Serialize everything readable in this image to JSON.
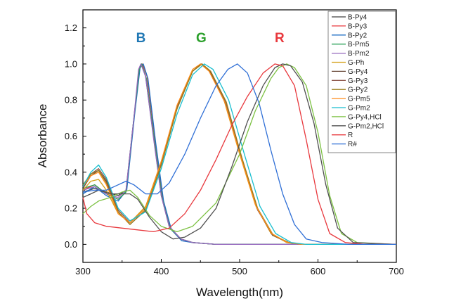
{
  "chart_data": {
    "type": "line",
    "xlabel": "Wavelength(nm)",
    "ylabel": "Absorbance",
    "xlim": [
      300,
      700
    ],
    "ylim": [
      -0.1,
      1.3
    ],
    "xticks": [
      "300",
      "400",
      "500",
      "600",
      "700"
    ],
    "yticks": [
      "0.0",
      "0.2",
      "0.4",
      "0.6",
      "0.8",
      "1.0",
      "1.2"
    ],
    "legend_position": "top-right",
    "annotations": [
      {
        "text": "B",
        "color": "#1f77b4",
        "x": 374,
        "y": 1.12
      },
      {
        "text": "G",
        "color": "#2ca02c",
        "x": 451,
        "y": 1.12
      },
      {
        "text": "R",
        "color": "#e8383d",
        "x": 551,
        "y": 1.12
      }
    ],
    "series": [
      {
        "name": "B-Py4",
        "color": "#404040",
        "points": [
          [
            300,
            0.29
          ],
          [
            315,
            0.31
          ],
          [
            330,
            0.29
          ],
          [
            345,
            0.27
          ],
          [
            355,
            0.3
          ],
          [
            365,
            0.7
          ],
          [
            372,
            0.97
          ],
          [
            375,
            1.0
          ],
          [
            380,
            0.93
          ],
          [
            390,
            0.6
          ],
          [
            400,
            0.27
          ],
          [
            410,
            0.1
          ],
          [
            425,
            0.03
          ],
          [
            440,
            0.01
          ],
          [
            470,
            0.0
          ],
          [
            700,
            0.0
          ]
        ]
      },
      {
        "name": "B-Py3",
        "color": "#e8383d",
        "points": [
          [
            300,
            0.3
          ],
          [
            315,
            0.33
          ],
          [
            330,
            0.28
          ],
          [
            345,
            0.25
          ],
          [
            355,
            0.29
          ],
          [
            365,
            0.69
          ],
          [
            372,
            0.97
          ],
          [
            376,
            1.0
          ],
          [
            382,
            0.93
          ],
          [
            392,
            0.58
          ],
          [
            402,
            0.25
          ],
          [
            412,
            0.09
          ],
          [
            425,
            0.03
          ],
          [
            440,
            0.01
          ],
          [
            470,
            0.0
          ],
          [
            700,
            0.0
          ]
        ]
      },
      {
        "name": "B-Py2",
        "color": "#1f6fc4",
        "points": [
          [
            300,
            0.28
          ],
          [
            315,
            0.32
          ],
          [
            330,
            0.27
          ],
          [
            345,
            0.24
          ],
          [
            356,
            0.3
          ],
          [
            366,
            0.72
          ],
          [
            373,
            0.98
          ],
          [
            377,
            1.0
          ],
          [
            383,
            0.92
          ],
          [
            393,
            0.56
          ],
          [
            403,
            0.24
          ],
          [
            413,
            0.08
          ],
          [
            426,
            0.02
          ],
          [
            440,
            0.01
          ],
          [
            470,
            0.0
          ],
          [
            700,
            0.0
          ]
        ]
      },
      {
        "name": "B-Pm5",
        "color": "#2ca05a",
        "points": [
          [
            300,
            0.31
          ],
          [
            315,
            0.33
          ],
          [
            330,
            0.28
          ],
          [
            345,
            0.25
          ],
          [
            355,
            0.29
          ],
          [
            365,
            0.7
          ],
          [
            372,
            0.97
          ],
          [
            375,
            1.0
          ],
          [
            381,
            0.92
          ],
          [
            391,
            0.58
          ],
          [
            401,
            0.26
          ],
          [
            411,
            0.09
          ],
          [
            425,
            0.03
          ],
          [
            440,
            0.01
          ],
          [
            470,
            0.0
          ],
          [
            700,
            0.0
          ]
        ]
      },
      {
        "name": "B-Pm2",
        "color": "#9467bd",
        "points": [
          [
            300,
            0.3
          ],
          [
            315,
            0.32
          ],
          [
            330,
            0.28
          ],
          [
            345,
            0.26
          ],
          [
            355,
            0.3
          ],
          [
            365,
            0.7
          ],
          [
            371,
            0.97
          ],
          [
            374,
            1.0
          ],
          [
            380,
            0.93
          ],
          [
            390,
            0.59
          ],
          [
            400,
            0.27
          ],
          [
            410,
            0.1
          ],
          [
            425,
            0.03
          ],
          [
            440,
            0.01
          ],
          [
            470,
            0.0
          ],
          [
            700,
            0.0
          ]
        ]
      },
      {
        "name": "G-Ph",
        "color": "#d4a017",
        "points": [
          [
            300,
            0.3
          ],
          [
            310,
            0.35
          ],
          [
            320,
            0.36
          ],
          [
            330,
            0.3
          ],
          [
            345,
            0.17
          ],
          [
            360,
            0.12
          ],
          [
            380,
            0.21
          ],
          [
            400,
            0.46
          ],
          [
            420,
            0.76
          ],
          [
            440,
            0.96
          ],
          [
            450,
            1.0
          ],
          [
            460,
            0.97
          ],
          [
            480,
            0.8
          ],
          [
            500,
            0.5
          ],
          [
            520,
            0.22
          ],
          [
            540,
            0.06
          ],
          [
            560,
            0.01
          ],
          [
            580,
            0.0
          ],
          [
            700,
            0.0
          ]
        ]
      },
      {
        "name": "G-Py4",
        "color": "#6a4a3a",
        "points": [
          [
            300,
            0.31
          ],
          [
            310,
            0.38
          ],
          [
            320,
            0.41
          ],
          [
            330,
            0.35
          ],
          [
            345,
            0.18
          ],
          [
            360,
            0.11
          ],
          [
            380,
            0.19
          ],
          [
            400,
            0.44
          ],
          [
            420,
            0.75
          ],
          [
            440,
            0.96
          ],
          [
            451,
            1.0
          ],
          [
            462,
            0.96
          ],
          [
            482,
            0.78
          ],
          [
            502,
            0.48
          ],
          [
            522,
            0.2
          ],
          [
            542,
            0.05
          ],
          [
            562,
            0.01
          ],
          [
            580,
            0.0
          ],
          [
            700,
            0.0
          ]
        ]
      },
      {
        "name": "G-Py3",
        "color": "#8c564b",
        "points": [
          [
            300,
            0.32
          ],
          [
            310,
            0.39
          ],
          [
            320,
            0.42
          ],
          [
            330,
            0.36
          ],
          [
            345,
            0.19
          ],
          [
            360,
            0.12
          ],
          [
            380,
            0.2
          ],
          [
            400,
            0.45
          ],
          [
            420,
            0.76
          ],
          [
            440,
            0.96
          ],
          [
            452,
            1.0
          ],
          [
            463,
            0.96
          ],
          [
            483,
            0.78
          ],
          [
            503,
            0.47
          ],
          [
            523,
            0.19
          ],
          [
            543,
            0.05
          ],
          [
            563,
            0.01
          ],
          [
            580,
            0.0
          ],
          [
            700,
            0.0
          ]
        ]
      },
      {
        "name": "G-Py2",
        "color": "#9a7d1a",
        "points": [
          [
            300,
            0.33
          ],
          [
            310,
            0.39
          ],
          [
            320,
            0.41
          ],
          [
            330,
            0.34
          ],
          [
            345,
            0.18
          ],
          [
            360,
            0.11
          ],
          [
            380,
            0.19
          ],
          [
            400,
            0.44
          ],
          [
            420,
            0.75
          ],
          [
            440,
            0.96
          ],
          [
            452,
            1.0
          ],
          [
            463,
            0.96
          ],
          [
            483,
            0.79
          ],
          [
            503,
            0.48
          ],
          [
            523,
            0.2
          ],
          [
            543,
            0.05
          ],
          [
            563,
            0.01
          ],
          [
            580,
            0.0
          ],
          [
            700,
            0.0
          ]
        ]
      },
      {
        "name": "G-Pm5",
        "color": "#ff8c1a",
        "points": [
          [
            300,
            0.32
          ],
          [
            310,
            0.38
          ],
          [
            320,
            0.4
          ],
          [
            330,
            0.33
          ],
          [
            345,
            0.17
          ],
          [
            360,
            0.12
          ],
          [
            380,
            0.2
          ],
          [
            400,
            0.46
          ],
          [
            420,
            0.77
          ],
          [
            440,
            0.97
          ],
          [
            450,
            1.0
          ],
          [
            461,
            0.96
          ],
          [
            481,
            0.79
          ],
          [
            501,
            0.49
          ],
          [
            521,
            0.21
          ],
          [
            541,
            0.06
          ],
          [
            561,
            0.01
          ],
          [
            580,
            0.0
          ],
          [
            700,
            0.0
          ]
        ]
      },
      {
        "name": "G-Pm2",
        "color": "#17becf",
        "points": [
          [
            300,
            0.32
          ],
          [
            310,
            0.4
          ],
          [
            320,
            0.44
          ],
          [
            330,
            0.37
          ],
          [
            345,
            0.2
          ],
          [
            360,
            0.13
          ],
          [
            380,
            0.18
          ],
          [
            400,
            0.42
          ],
          [
            420,
            0.72
          ],
          [
            440,
            0.94
          ],
          [
            455,
            1.0
          ],
          [
            466,
            0.97
          ],
          [
            486,
            0.8
          ],
          [
            506,
            0.5
          ],
          [
            526,
            0.21
          ],
          [
            546,
            0.06
          ],
          [
            566,
            0.01
          ],
          [
            585,
            0.0
          ],
          [
            700,
            0.0
          ]
        ]
      },
      {
        "name": "G-Py4,HCl",
        "color": "#7cc142",
        "points": [
          [
            300,
            0.17
          ],
          [
            310,
            0.21
          ],
          [
            320,
            0.24
          ],
          [
            335,
            0.26
          ],
          [
            350,
            0.29
          ],
          [
            360,
            0.3
          ],
          [
            370,
            0.26
          ],
          [
            385,
            0.16
          ],
          [
            400,
            0.1
          ],
          [
            420,
            0.07
          ],
          [
            440,
            0.1
          ],
          [
            470,
            0.23
          ],
          [
            500,
            0.5
          ],
          [
            520,
            0.74
          ],
          [
            540,
            0.92
          ],
          [
            550,
            0.98
          ],
          [
            560,
            1.0
          ],
          [
            570,
            0.98
          ],
          [
            585,
            0.88
          ],
          [
            600,
            0.62
          ],
          [
            615,
            0.27
          ],
          [
            630,
            0.06
          ],
          [
            650,
            0.01
          ],
          [
            700,
            0.0
          ]
        ]
      },
      {
        "name": "G-Pm2,HCl",
        "color": "#505050",
        "points": [
          [
            300,
            0.26
          ],
          [
            310,
            0.28
          ],
          [
            320,
            0.3
          ],
          [
            335,
            0.28
          ],
          [
            350,
            0.28
          ],
          [
            360,
            0.28
          ],
          [
            370,
            0.25
          ],
          [
            385,
            0.15
          ],
          [
            400,
            0.07
          ],
          [
            415,
            0.03
          ],
          [
            430,
            0.04
          ],
          [
            450,
            0.09
          ],
          [
            470,
            0.2
          ],
          [
            490,
            0.43
          ],
          [
            510,
            0.68
          ],
          [
            530,
            0.88
          ],
          [
            545,
            0.98
          ],
          [
            555,
            1.0
          ],
          [
            565,
            0.99
          ],
          [
            580,
            0.9
          ],
          [
            595,
            0.67
          ],
          [
            610,
            0.33
          ],
          [
            625,
            0.09
          ],
          [
            645,
            0.01
          ],
          [
            700,
            0.0
          ]
        ]
      },
      {
        "name": "R",
        "color": "#e8383d",
        "points": [
          [
            300,
            0.26
          ],
          [
            305,
            0.17
          ],
          [
            315,
            0.12
          ],
          [
            330,
            0.1
          ],
          [
            350,
            0.09
          ],
          [
            370,
            0.08
          ],
          [
            390,
            0.07
          ],
          [
            410,
            0.09
          ],
          [
            430,
            0.17
          ],
          [
            450,
            0.3
          ],
          [
            470,
            0.47
          ],
          [
            490,
            0.66
          ],
          [
            510,
            0.82
          ],
          [
            530,
            0.95
          ],
          [
            545,
            1.0
          ],
          [
            555,
            0.99
          ],
          [
            570,
            0.88
          ],
          [
            585,
            0.58
          ],
          [
            600,
            0.25
          ],
          [
            615,
            0.06
          ],
          [
            635,
            0.01
          ],
          [
            660,
            0.0
          ],
          [
            700,
            0.0
          ]
        ]
      },
      {
        "name": "R#",
        "color": "#2f6fd6",
        "points": [
          [
            300,
            0.29
          ],
          [
            315,
            0.3
          ],
          [
            330,
            0.3
          ],
          [
            345,
            0.33
          ],
          [
            355,
            0.35
          ],
          [
            365,
            0.33
          ],
          [
            380,
            0.28
          ],
          [
            395,
            0.28
          ],
          [
            410,
            0.34
          ],
          [
            430,
            0.5
          ],
          [
            450,
            0.7
          ],
          [
            470,
            0.88
          ],
          [
            485,
            0.97
          ],
          [
            497,
            1.0
          ],
          [
            510,
            0.95
          ],
          [
            525,
            0.78
          ],
          [
            540,
            0.52
          ],
          [
            555,
            0.28
          ],
          [
            570,
            0.11
          ],
          [
            585,
            0.03
          ],
          [
            605,
            0.01
          ],
          [
            640,
            0.0
          ],
          [
            700,
            0.0
          ]
        ]
      }
    ]
  }
}
